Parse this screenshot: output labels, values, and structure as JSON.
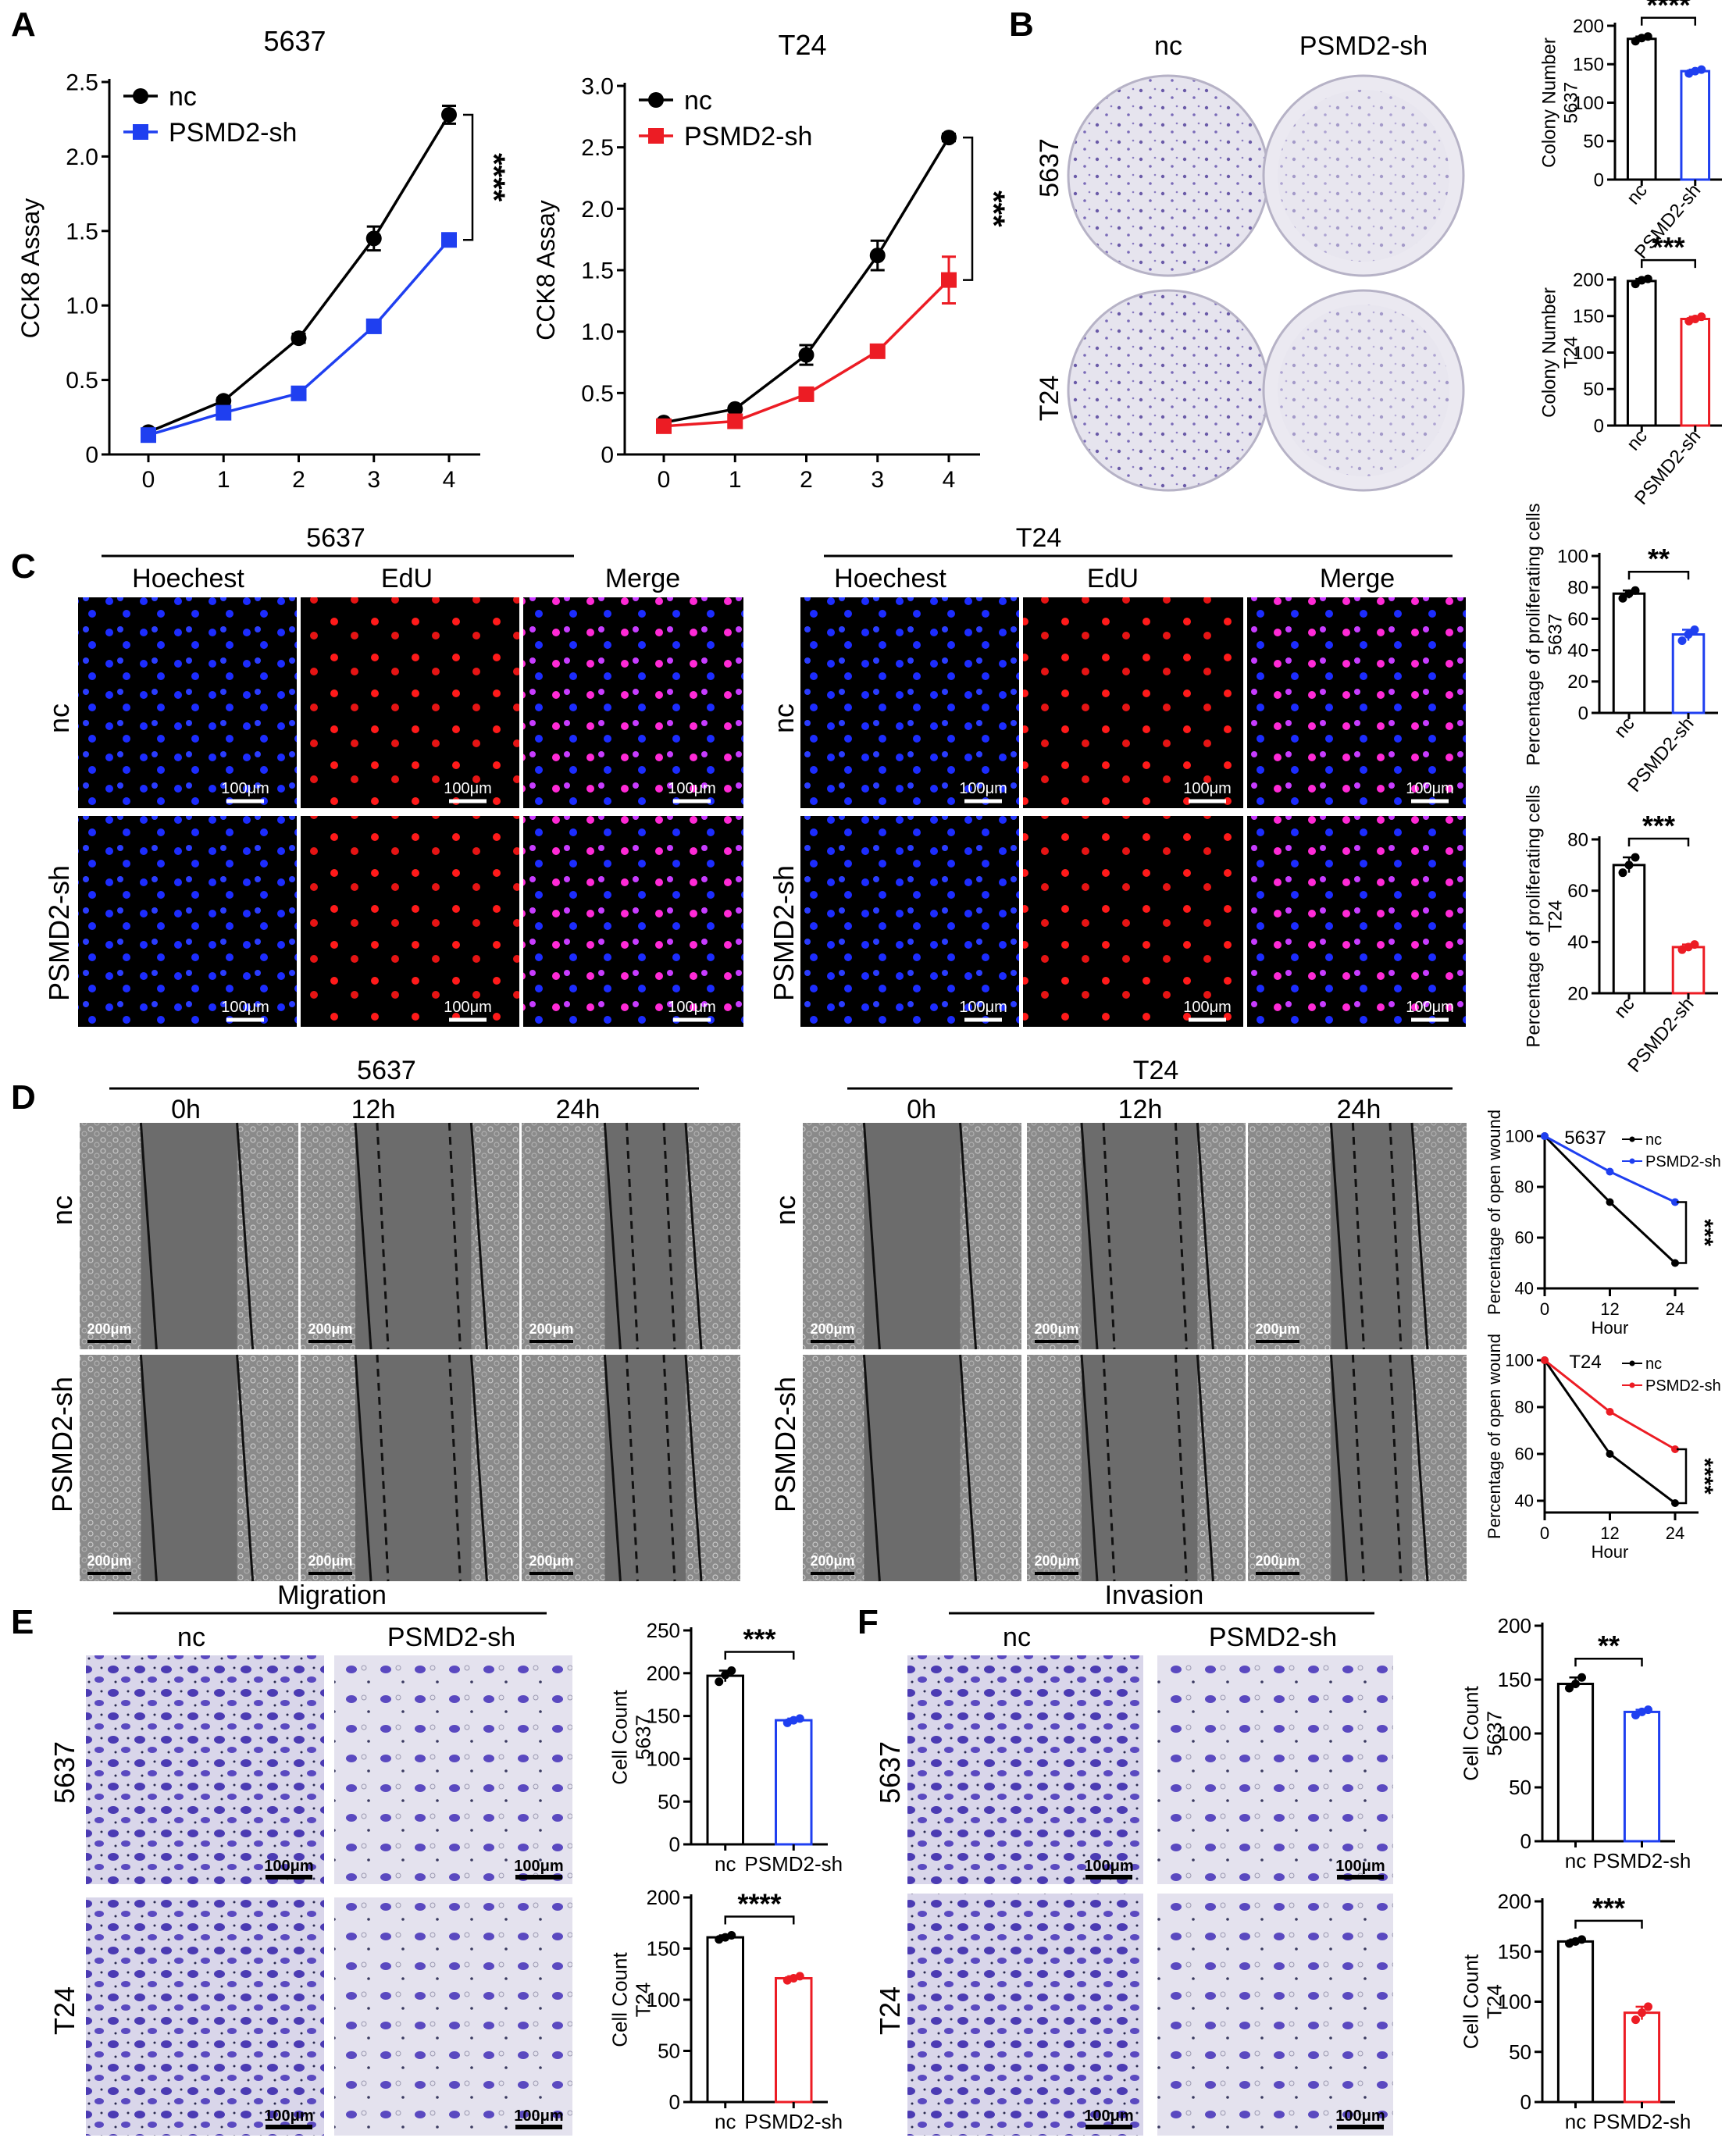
{
  "panel_letters": {
    "a": "A",
    "b": "B",
    "c": "C",
    "d": "D",
    "e": "E",
    "f": "F"
  },
  "colors": {
    "black": "#000000",
    "blue": "#1f3ff0",
    "red": "#ec1c24"
  },
  "icons": {
    "micrograph": "microscopy-image-icon",
    "dish": "colony-dish-icon"
  },
  "panelB": {
    "col_labels": [
      "nc",
      "PSMD2-sh"
    ],
    "row_labels": [
      "5637",
      "T24"
    ]
  },
  "panelC": {
    "left_title": "5637",
    "right_title": "T24",
    "channels": [
      "Hoechest",
      "EdU",
      "Merge"
    ],
    "row_labels": [
      "nc",
      "PSMD2-sh"
    ],
    "scale": "100μm"
  },
  "panelD": {
    "left_title": "5637",
    "right_title": "T24",
    "times": [
      "0h",
      "12h",
      "24h"
    ],
    "row_labels": [
      "nc",
      "PSMD2-sh"
    ],
    "scale": "200μm"
  },
  "panelE": {
    "title": "Migration",
    "col_labels": [
      "nc",
      "PSMD2-sh"
    ],
    "row_labels": [
      "5637",
      "T24"
    ],
    "scale": "100μm"
  },
  "panelF": {
    "title": "Invasion",
    "col_labels": [
      "nc",
      "PSMD2-sh"
    ],
    "row_labels": [
      "5637",
      "T24"
    ],
    "scale": "100μm"
  },
  "chart_data": [
    {
      "id": "a1",
      "type": "line",
      "title": "5637",
      "xlabel": "",
      "ylabel": "CCK8 Assay",
      "x": [
        0,
        1,
        2,
        3,
        4
      ],
      "xticks": [
        "0",
        "1",
        "2",
        "3",
        "4"
      ],
      "yticks": [
        "0",
        "0.5",
        "1.0",
        "1.5",
        "2.0",
        "2.5"
      ],
      "ylim": [
        0,
        2.5
      ],
      "series": [
        {
          "name": "nc",
          "color": "#000000",
          "marker": "circle",
          "values": [
            0.15,
            0.36,
            0.78,
            1.45,
            2.28
          ],
          "err": [
            0.02,
            0.02,
            0.03,
            0.08,
            0.06
          ]
        },
        {
          "name": "PSMD2-sh",
          "color": "#1f3ff0",
          "marker": "square",
          "values": [
            0.13,
            0.28,
            0.41,
            0.86,
            1.44
          ],
          "err": [
            0.01,
            0.02,
            0.02,
            0.03,
            0.03
          ]
        }
      ],
      "significance": "****",
      "legend": "top-left"
    },
    {
      "id": "a2",
      "type": "line",
      "title": "T24",
      "xlabel": "",
      "ylabel": "CCK8 Assay",
      "x": [
        0,
        1,
        2,
        3,
        4
      ],
      "xticks": [
        "0",
        "1",
        "2",
        "3",
        "4"
      ],
      "yticks": [
        "0",
        "0.5",
        "1.0",
        "1.5",
        "2.0",
        "2.5",
        "3.0"
      ],
      "ylim": [
        0,
        3.0
      ],
      "series": [
        {
          "name": "nc",
          "color": "#000000",
          "marker": "circle",
          "values": [
            0.26,
            0.37,
            0.81,
            1.62,
            2.58
          ],
          "err": [
            0.02,
            0.02,
            0.08,
            0.12,
            0.03
          ]
        },
        {
          "name": "PSMD2-sh",
          "color": "#ec1c24",
          "marker": "square",
          "values": [
            0.23,
            0.27,
            0.49,
            0.84,
            1.42
          ],
          "err": [
            0.02,
            0.02,
            0.03,
            0.04,
            0.19
          ]
        }
      ],
      "significance": "***",
      "legend": "top-left"
    },
    {
      "id": "b1",
      "type": "bar",
      "ylabel": "Colony Number\n5637",
      "categories": [
        "nc",
        "PSMD2-sh"
      ],
      "values": [
        183,
        141
      ],
      "colors": [
        "#000000",
        "#1f3ff0"
      ],
      "points": [
        [
          180,
          184,
          186
        ],
        [
          138,
          141,
          143
        ]
      ],
      "yticks": [
        "0",
        "50",
        "100",
        "150",
        "200"
      ],
      "ylim": [
        0,
        200
      ],
      "significance": "****"
    },
    {
      "id": "b2",
      "type": "bar",
      "ylabel": "Colony Number\nT24",
      "categories": [
        "nc",
        "PSMD2-sh"
      ],
      "values": [
        198,
        146
      ],
      "colors": [
        "#000000",
        "#ec1c24"
      ],
      "points": [
        [
          194,
          199,
          201
        ],
        [
          143,
          146,
          149
        ]
      ],
      "yticks": [
        "0",
        "50",
        "100",
        "150",
        "200"
      ],
      "ylim": [
        0,
        200
      ],
      "significance": "***"
    },
    {
      "id": "c1",
      "type": "bar",
      "ylabel": "Percentage of proliferating cells\n5637",
      "categories": [
        "nc",
        "PSMD2-sh"
      ],
      "values": [
        76,
        50
      ],
      "colors": [
        "#000000",
        "#1f3ff0"
      ],
      "points": [
        [
          73,
          76,
          78
        ],
        [
          46,
          50,
          53
        ]
      ],
      "yticks": [
        "0",
        "20",
        "40",
        "60",
        "80",
        "100"
      ],
      "ylim": [
        0,
        100
      ],
      "significance": "**"
    },
    {
      "id": "c2",
      "type": "bar",
      "ylabel": "Percentage of proliferating cells\nT24",
      "categories": [
        "nc",
        "PSMD2-sh"
      ],
      "values": [
        70,
        38
      ],
      "colors": [
        "#000000",
        "#ec1c24"
      ],
      "points": [
        [
          67,
          70,
          73
        ],
        [
          37,
          38,
          39
        ]
      ],
      "yticks": [
        "20",
        "40",
        "60",
        "80"
      ],
      "ylim": [
        20,
        80
      ],
      "significance": "***"
    },
    {
      "id": "d1",
      "type": "line",
      "title": "5637",
      "xlabel": "Hour",
      "ylabel": "Percentage of open wound",
      "x": [
        0,
        12,
        24
      ],
      "xticks": [
        "0",
        "12",
        "24"
      ],
      "yticks": [
        "40",
        "60",
        "80",
        "100"
      ],
      "ylim": [
        40,
        100
      ],
      "series": [
        {
          "name": "nc",
          "color": "#000000",
          "values": [
            100,
            74,
            50
          ]
        },
        {
          "name": "PSMD2-sh",
          "color": "#1f3ff0",
          "values": [
            100,
            86,
            74
          ]
        }
      ],
      "significance": "***",
      "legend": "top-right"
    },
    {
      "id": "d2",
      "type": "line",
      "title": "T24",
      "xlabel": "Hour",
      "ylabel": "Percentage of open wound",
      "x": [
        0,
        12,
        24
      ],
      "xticks": [
        "0",
        "12",
        "24"
      ],
      "yticks": [
        "40",
        "60",
        "80",
        "100"
      ],
      "ylim": [
        35,
        100
      ],
      "series": [
        {
          "name": "nc",
          "color": "#000000",
          "values": [
            100,
            60,
            39
          ]
        },
        {
          "name": "PSMD2-sh",
          "color": "#ec1c24",
          "values": [
            100,
            78,
            62
          ]
        }
      ],
      "significance": "****",
      "legend": "top-right"
    },
    {
      "id": "e1",
      "type": "bar",
      "ylabel": "Cell Count\n5637",
      "categories": [
        "nc",
        "PSMD2-sh"
      ],
      "values": [
        197,
        145
      ],
      "colors": [
        "#000000",
        "#1f3ff0"
      ],
      "points": [
        [
          190,
          198,
          203
        ],
        [
          142,
          145,
          147
        ]
      ],
      "yticks": [
        "0",
        "50",
        "100",
        "150",
        "200",
        "250"
      ],
      "ylim": [
        0,
        250
      ],
      "significance": "***"
    },
    {
      "id": "e2",
      "type": "bar",
      "ylabel": "Cell Count\nT24",
      "categories": [
        "nc",
        "PSMD2-sh"
      ],
      "values": [
        161,
        121
      ],
      "colors": [
        "#000000",
        "#ec1c24"
      ],
      "points": [
        [
          159,
          161,
          163
        ],
        [
          119,
          121,
          123
        ]
      ],
      "yticks": [
        "0",
        "50",
        "100",
        "150",
        "200"
      ],
      "ylim": [
        0,
        200
      ],
      "significance": "****"
    },
    {
      "id": "f1",
      "type": "bar",
      "ylabel": "Cell Count\n5637",
      "categories": [
        "nc",
        "PSMD2-sh"
      ],
      "values": [
        146,
        120
      ],
      "colors": [
        "#000000",
        "#1f3ff0"
      ],
      "points": [
        [
          142,
          146,
          152
        ],
        [
          117,
          120,
          122
        ]
      ],
      "yticks": [
        "0",
        "50",
        "100",
        "150",
        "200"
      ],
      "ylim": [
        0,
        200
      ],
      "significance": "**"
    },
    {
      "id": "f2",
      "type": "bar",
      "ylabel": "Cell Count\nT24",
      "categories": [
        "nc",
        "PSMD2-sh"
      ],
      "values": [
        160,
        89
      ],
      "colors": [
        "#000000",
        "#ec1c24"
      ],
      "points": [
        [
          158,
          160,
          162
        ],
        [
          82,
          89,
          95
        ]
      ],
      "yticks": [
        "0",
        "50",
        "100",
        "150",
        "200"
      ],
      "ylim": [
        0,
        200
      ],
      "significance": "***"
    }
  ]
}
